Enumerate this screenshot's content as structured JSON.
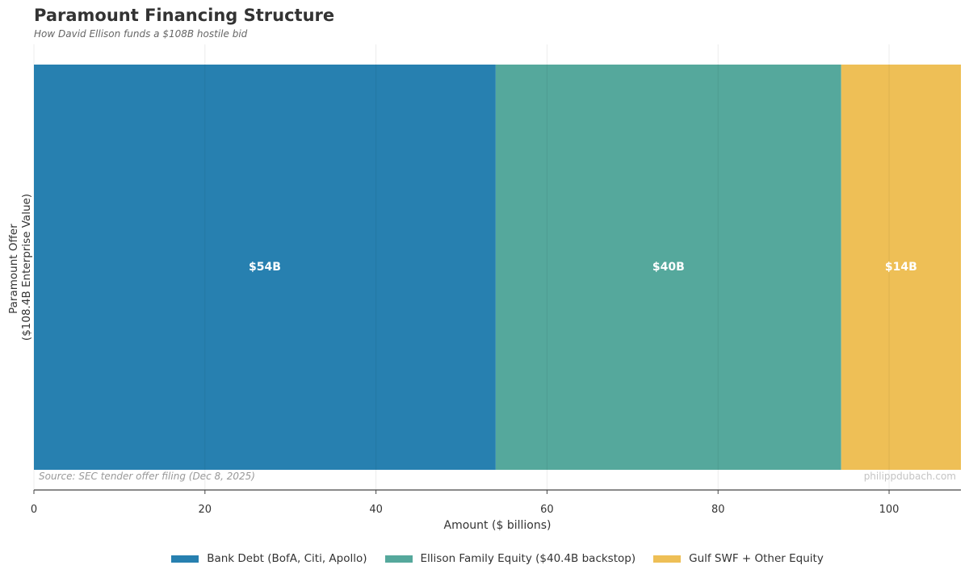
{
  "header": {
    "title": "Paramount Financing Structure",
    "subtitle": "How David Ellison funds a $108B hostile bid"
  },
  "footer": {
    "source": "Source: SEC tender offer filing (Dec 8, 2025)",
    "watermark": "philippdubach.com"
  },
  "chart_data": {
    "type": "bar",
    "orientation": "horizontal-stacked",
    "title": "Paramount Financing Structure",
    "subtitle": "How David Ellison funds a $108B hostile bid",
    "categories": [
      "Paramount Offer ($108.4B Enterprise Value)"
    ],
    "ylabel_lines": [
      "Paramount Offer",
      "($108.4B Enterprise Value)"
    ],
    "xlabel": "Amount ($ billions)",
    "xlim": [
      0,
      108.4
    ],
    "xticks": [
      0,
      20,
      40,
      60,
      80,
      100
    ],
    "grid": true,
    "legend_position": "bottom-center",
    "series": [
      {
        "name": "Bank Debt (BofA, Citi, Apollo)",
        "values": [
          54
        ],
        "label": "$54B",
        "color": "#2780B0"
      },
      {
        "name": "Ellison Family Equity ($40.4B backstop)",
        "values": [
          40.4
        ],
        "label": "$40B",
        "color": "#55A89C"
      },
      {
        "name": "Gulf SWF + Other Equity",
        "values": [
          14
        ],
        "label": "$14B",
        "color": "#EEBF56"
      }
    ]
  }
}
